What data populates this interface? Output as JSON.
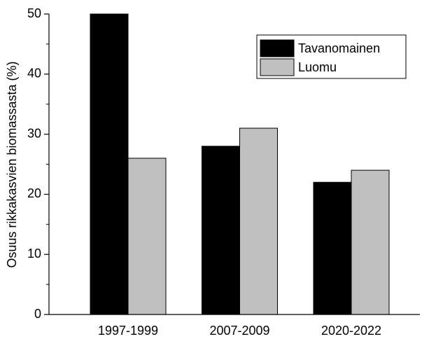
{
  "chart_data": {
    "type": "bar",
    "ylabel": "Osuus rikkakasvien biomassasta (%)",
    "categories": [
      "1997-1999",
      "2007-2009",
      "2020-2022"
    ],
    "series": [
      {
        "name": "Tavanomainen",
        "color": "#000000",
        "values": [
          50,
          28,
          22
        ]
      },
      {
        "name": "Luomu",
        "color": "#c0c0c0",
        "values": [
          26,
          31,
          24
        ]
      }
    ],
    "ylim": [
      0,
      50
    ],
    "yticks": [
      0,
      10,
      20,
      30,
      40,
      50
    ],
    "yminorticks": [
      5,
      15,
      25,
      35,
      45
    ],
    "legend": "upper right"
  }
}
